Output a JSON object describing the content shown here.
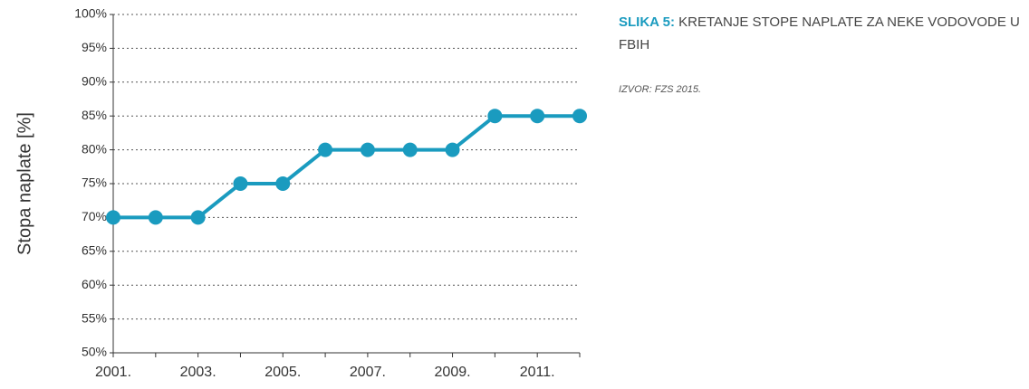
{
  "chart_data": {
    "type": "line",
    "title_label": "SLIKA 5:",
    "title": "KRETANJE STOPE NAPLATE ZA NEKE VODOVODE U FBIH",
    "source": "IZVOR: FZS 2015.",
    "y_label": "Stopa naplate  [%]",
    "categories": [
      "2001.",
      null,
      "2003.",
      null,
      "2005.",
      null,
      "2007.",
      null,
      "2009.",
      null,
      "2011.",
      null
    ],
    "values": [
      70,
      70,
      70,
      75,
      75,
      80,
      80,
      80,
      80,
      85,
      85,
      85
    ],
    "color": "#1a9bbf",
    "ylim": [
      50,
      100
    ],
    "yticks": [
      {
        "value": 50,
        "label": "50%"
      },
      {
        "value": 55,
        "label": "55%"
      },
      {
        "value": 60,
        "label": "60%"
      },
      {
        "value": 65,
        "label": "65%"
      },
      {
        "value": 70,
        "label": "70%"
      },
      {
        "value": 75,
        "label": "75%"
      },
      {
        "value": 80,
        "label": "80%"
      },
      {
        "value": 85,
        "label": "85%"
      },
      {
        "value": 90,
        "label": "90%"
      },
      {
        "value": 95,
        "label": "95%"
      },
      {
        "value": 100,
        "label": "100%"
      }
    ],
    "grid": true
  }
}
